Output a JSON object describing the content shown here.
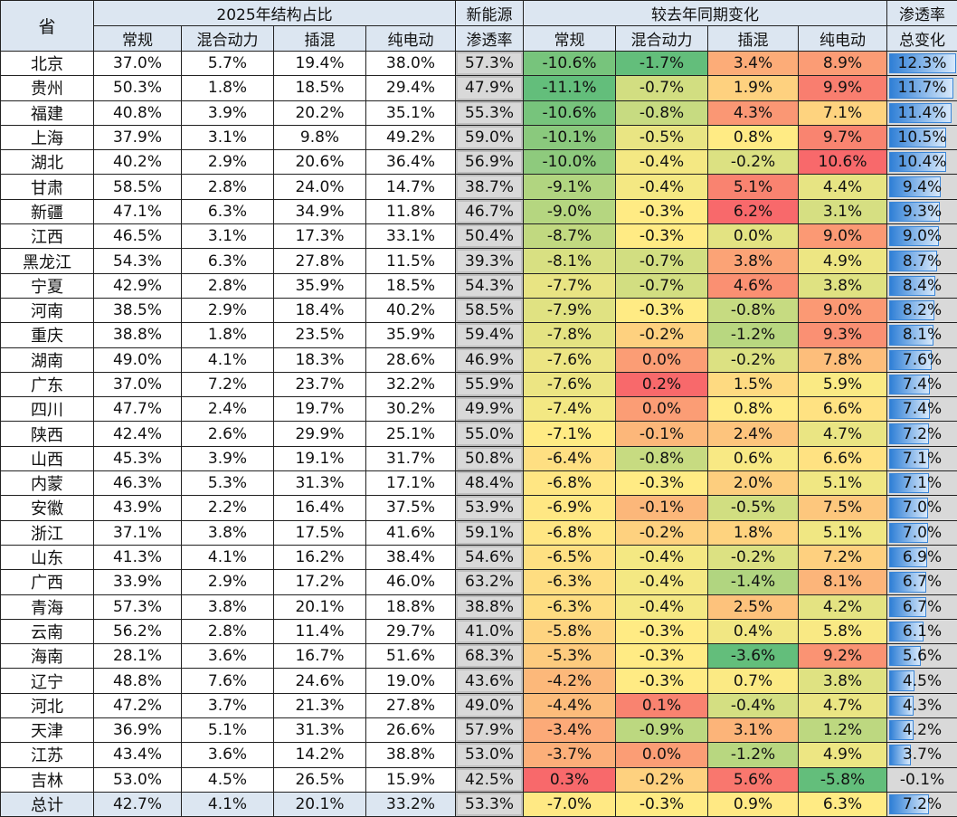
{
  "headers": {
    "province": "省",
    "group1": "2025年结构占比",
    "nev1": "新能源",
    "nev2": "渗透率",
    "group2": "较去年同期变化",
    "tot1": "渗透率",
    "tot2": "总变化",
    "cols": [
      "常规",
      "混合动力",
      "插混",
      "纯电动"
    ]
  },
  "colors": {
    "low": "#63be7b",
    "mid": "#ffeb84",
    "high": "#f8696b",
    "header": "#dce6f1",
    "grey": "#d9d9d9",
    "bar": "#2f7fd6"
  },
  "rows": [
    [
      "北京",
      "37.0%",
      "5.7%",
      "19.4%",
      "38.0%",
      "57.3%",
      "-10.6%",
      "-1.7%",
      "3.4%",
      "8.9%",
      "12.3%"
    ],
    [
      "贵州",
      "50.3%",
      "1.8%",
      "18.5%",
      "29.4%",
      "47.9%",
      "-11.1%",
      "-0.7%",
      "1.9%",
      "9.9%",
      "11.7%"
    ],
    [
      "福建",
      "40.8%",
      "3.9%",
      "20.2%",
      "35.1%",
      "55.3%",
      "-10.6%",
      "-0.8%",
      "4.3%",
      "7.1%",
      "11.4%"
    ],
    [
      "上海",
      "37.9%",
      "3.1%",
      "9.8%",
      "49.2%",
      "59.0%",
      "-10.1%",
      "-0.5%",
      "0.8%",
      "9.7%",
      "10.5%"
    ],
    [
      "湖北",
      "40.2%",
      "2.9%",
      "20.6%",
      "36.4%",
      "56.9%",
      "-10.0%",
      "-0.4%",
      "-0.2%",
      "10.6%",
      "10.4%"
    ],
    [
      "甘肃",
      "58.5%",
      "2.8%",
      "24.0%",
      "14.7%",
      "38.7%",
      "-9.1%",
      "-0.4%",
      "5.1%",
      "4.4%",
      "9.4%"
    ],
    [
      "新疆",
      "47.1%",
      "6.3%",
      "34.9%",
      "11.8%",
      "46.7%",
      "-9.0%",
      "-0.3%",
      "6.2%",
      "3.1%",
      "9.3%"
    ],
    [
      "江西",
      "46.5%",
      "3.1%",
      "17.3%",
      "33.1%",
      "50.4%",
      "-8.7%",
      "-0.3%",
      "0.0%",
      "9.0%",
      "9.0%"
    ],
    [
      "黑龙江",
      "54.3%",
      "6.3%",
      "27.8%",
      "11.5%",
      "39.3%",
      "-8.1%",
      "-0.7%",
      "3.8%",
      "4.9%",
      "8.7%"
    ],
    [
      "宁夏",
      "42.9%",
      "2.8%",
      "35.9%",
      "18.5%",
      "54.3%",
      "-7.7%",
      "-0.7%",
      "4.6%",
      "3.8%",
      "8.4%"
    ],
    [
      "河南",
      "38.5%",
      "2.9%",
      "18.4%",
      "40.2%",
      "58.5%",
      "-7.9%",
      "-0.3%",
      "-0.8%",
      "9.0%",
      "8.2%"
    ],
    [
      "重庆",
      "38.8%",
      "1.8%",
      "23.5%",
      "35.9%",
      "59.4%",
      "-7.8%",
      "-0.2%",
      "-1.2%",
      "9.3%",
      "8.1%"
    ],
    [
      "湖南",
      "49.0%",
      "4.1%",
      "18.3%",
      "28.6%",
      "46.9%",
      "-7.6%",
      "0.0%",
      "-0.2%",
      "7.8%",
      "7.6%"
    ],
    [
      "广东",
      "37.0%",
      "7.2%",
      "23.7%",
      "32.2%",
      "55.9%",
      "-7.6%",
      "0.2%",
      "1.5%",
      "5.9%",
      "7.4%"
    ],
    [
      "四川",
      "47.7%",
      "2.4%",
      "19.7%",
      "30.2%",
      "49.9%",
      "-7.4%",
      "0.0%",
      "0.8%",
      "6.6%",
      "7.4%"
    ],
    [
      "陕西",
      "42.4%",
      "2.6%",
      "29.9%",
      "25.1%",
      "55.0%",
      "-7.1%",
      "-0.1%",
      "2.4%",
      "4.7%",
      "7.2%"
    ],
    [
      "山西",
      "45.3%",
      "3.9%",
      "19.1%",
      "31.7%",
      "50.8%",
      "-6.4%",
      "-0.8%",
      "0.6%",
      "6.6%",
      "7.1%"
    ],
    [
      "内蒙",
      "46.3%",
      "5.3%",
      "31.3%",
      "17.1%",
      "48.4%",
      "-6.8%",
      "-0.3%",
      "2.0%",
      "5.1%",
      "7.1%"
    ],
    [
      "安徽",
      "43.9%",
      "2.2%",
      "16.4%",
      "37.5%",
      "53.9%",
      "-6.9%",
      "-0.1%",
      "-0.5%",
      "7.5%",
      "7.0%"
    ],
    [
      "浙江",
      "37.1%",
      "3.8%",
      "17.5%",
      "41.6%",
      "59.1%",
      "-6.8%",
      "-0.2%",
      "1.8%",
      "5.1%",
      "7.0%"
    ],
    [
      "山东",
      "41.3%",
      "4.1%",
      "16.2%",
      "38.4%",
      "54.6%",
      "-6.5%",
      "-0.4%",
      "-0.2%",
      "7.2%",
      "6.9%"
    ],
    [
      "广西",
      "33.9%",
      "2.9%",
      "17.2%",
      "46.0%",
      "63.2%",
      "-6.3%",
      "-0.4%",
      "-1.4%",
      "8.1%",
      "6.7%"
    ],
    [
      "青海",
      "57.3%",
      "3.8%",
      "20.1%",
      "18.8%",
      "38.8%",
      "-6.3%",
      "-0.4%",
      "2.5%",
      "4.2%",
      "6.7%"
    ],
    [
      "云南",
      "56.2%",
      "2.8%",
      "11.4%",
      "29.7%",
      "41.0%",
      "-5.8%",
      "-0.3%",
      "0.4%",
      "5.8%",
      "6.1%"
    ],
    [
      "海南",
      "28.1%",
      "3.6%",
      "16.7%",
      "51.6%",
      "68.3%",
      "-5.3%",
      "-0.3%",
      "-3.6%",
      "9.2%",
      "5.6%"
    ],
    [
      "辽宁",
      "48.8%",
      "7.6%",
      "24.6%",
      "19.0%",
      "43.6%",
      "-4.2%",
      "-0.3%",
      "0.7%",
      "3.8%",
      "4.5%"
    ],
    [
      "河北",
      "47.2%",
      "3.7%",
      "21.3%",
      "27.8%",
      "49.0%",
      "-4.4%",
      "0.1%",
      "-0.4%",
      "4.7%",
      "4.3%"
    ],
    [
      "天津",
      "36.9%",
      "5.1%",
      "31.3%",
      "26.6%",
      "57.9%",
      "-3.4%",
      "-0.9%",
      "3.1%",
      "1.2%",
      "4.2%"
    ],
    [
      "江苏",
      "43.4%",
      "3.6%",
      "14.2%",
      "38.8%",
      "53.0%",
      "-3.7%",
      "0.0%",
      "-1.2%",
      "4.9%",
      "3.7%"
    ],
    [
      "吉林",
      "53.0%",
      "4.5%",
      "26.5%",
      "15.9%",
      "42.5%",
      "0.3%",
      "-0.2%",
      "5.6%",
      "-5.8%",
      "-0.1%"
    ],
    [
      "总计",
      "42.7%",
      "4.1%",
      "20.1%",
      "33.2%",
      "53.3%",
      "-7.0%",
      "-0.3%",
      "0.9%",
      "6.3%",
      "7.2%"
    ]
  ]
}
